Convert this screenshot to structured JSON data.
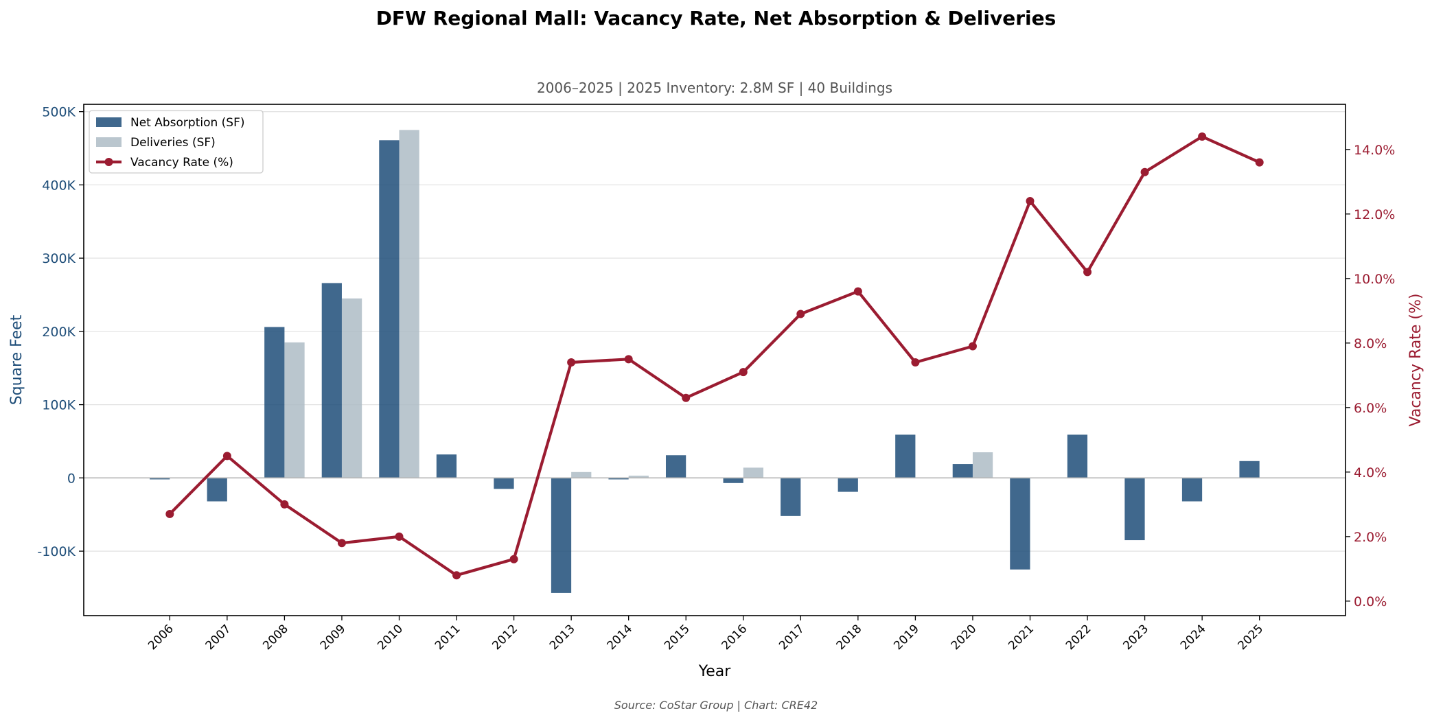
{
  "title": "DFW Regional Mall: Vacancy Rate, Net Absorption & Deliveries",
  "subtitle": "2006–2025  |  2025 Inventory: 2.8M SF  |  40 Buildings",
  "source": "Source: CoStar Group  |  Chart: CRE42",
  "colors": {
    "absorption": "#1f4e79",
    "deliveries": "#a9b8c2",
    "vacancy": "#9b1c31",
    "left_axis": "#1f4e79",
    "right_axis": "#9b1c31"
  },
  "chart_data": {
    "type": "bar",
    "categories": [
      "2006",
      "2007",
      "2008",
      "2009",
      "2010",
      "2011",
      "2012",
      "2013",
      "2014",
      "2015",
      "2016",
      "2017",
      "2018",
      "2019",
      "2020",
      "2021",
      "2022",
      "2023",
      "2024",
      "2025"
    ],
    "series": [
      {
        "name": "Net Absorption (SF)",
        "type": "bar",
        "axis": "left",
        "values": [
          -2000,
          -32000,
          206000,
          266000,
          461000,
          32000,
          -15000,
          -157000,
          -2000,
          31000,
          -7000,
          -52000,
          -19000,
          59000,
          19000,
          -125000,
          59000,
          -85000,
          -32000,
          23000
        ]
      },
      {
        "name": "Deliveries (SF)",
        "type": "bar",
        "axis": "left",
        "values": [
          0,
          0,
          185000,
          245000,
          475000,
          0,
          0,
          8000,
          3000,
          0,
          14000,
          0,
          0,
          0,
          35000,
          0,
          0,
          0,
          0,
          0
        ]
      },
      {
        "name": "Vacancy Rate (%)",
        "type": "line",
        "axis": "right",
        "values": [
          2.7,
          4.5,
          3.0,
          1.8,
          2.0,
          0.8,
          1.3,
          7.4,
          7.5,
          6.3,
          7.1,
          8.9,
          9.6,
          7.4,
          7.9,
          12.4,
          10.2,
          13.3,
          14.4,
          13.6
        ]
      }
    ],
    "xlabel": "Year",
    "ylabel": "Square Feet",
    "y2label": "Vacancy Rate (%)",
    "ylim": [
      -188000,
      510000
    ],
    "y2lim": [
      -0.45,
      15.4
    ],
    "yticks": [
      -100000,
      0,
      100000,
      200000,
      300000,
      400000,
      500000
    ],
    "ytick_labels": [
      "-100K",
      "0",
      "100K",
      "200K",
      "300K",
      "400K",
      "500K"
    ],
    "y2ticks": [
      0,
      2,
      4,
      6,
      8,
      10,
      12,
      14
    ],
    "y2tick_labels": [
      "0.0%",
      "2.0%",
      "4.0%",
      "6.0%",
      "8.0%",
      "10.0%",
      "12.0%",
      "14.0%"
    ],
    "grid": "horizontal",
    "legend": "top-left"
  }
}
